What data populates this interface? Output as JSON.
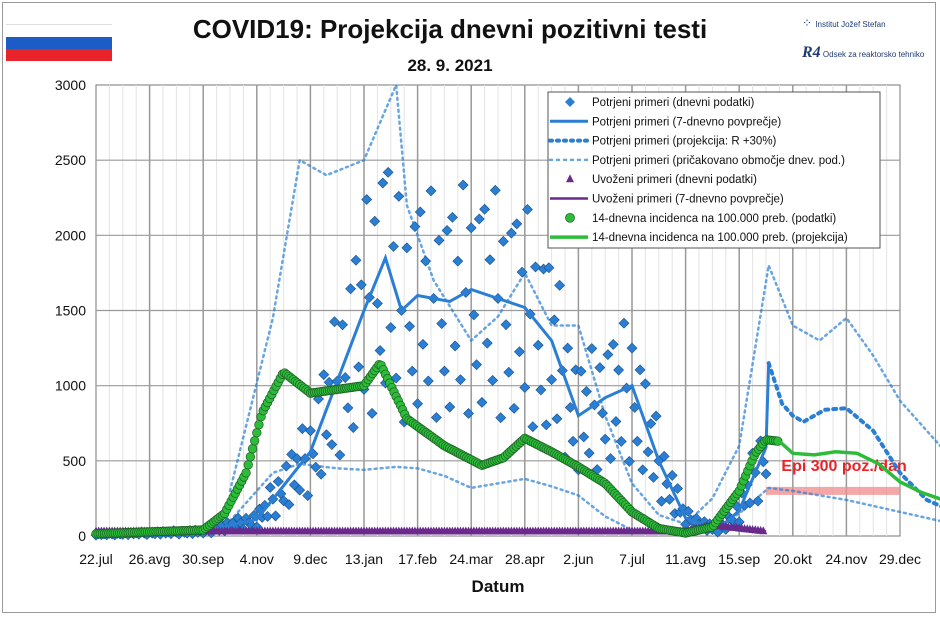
{
  "header": {
    "title": "COVID19: Projekcija dnevni pozitivni testi",
    "date": "28. 9. 2021",
    "logo_ijs": "Institut Jožef Stefan",
    "logo_r4": "R4",
    "logo_r4_text": "Odsek za reaktorsko tehniko"
  },
  "colors": {
    "flag_white": "#ffffff",
    "flag_blue": "#1c5cc7",
    "flag_red": "#e8232a",
    "confirmed": "#2a7fd4",
    "imported": "#6a2a8c",
    "incidence": "#2dbb3a",
    "epi": "#f08a8a"
  },
  "chart_data": {
    "type": "line",
    "xlabel": "Datum",
    "ylabel": "",
    "ylim": [
      0,
      3000
    ],
    "yticks": [
      "0",
      "500",
      "1000",
      "1500",
      "2000",
      "2500",
      "3000"
    ],
    "xticks": [
      "22.jul",
      "26.avg",
      "30.sep",
      "4.nov",
      "9.dec",
      "13.jan",
      "17.feb",
      "24.mar",
      "28.apr",
      "2.jun",
      "7.jul",
      "11.avg",
      "15.sep",
      "20.okt",
      "24.nov",
      "29.dec"
    ],
    "annotation": "Epi 300 poz./dan",
    "epi_threshold": 300,
    "legend_position": "top-right",
    "legend": [
      "Potrjeni primeri (dnevni podatki)",
      "Potrjeni primeri (7-dnevno povprečje)",
      "Potrjeni primeri (projekcija: R +30%)",
      "Potrjeni primeri (pričakovano območje dnev. pod.)",
      "Uvoženi primeri (dnevni podatki)",
      "Uvoženi primeri (7-dnevno povprečje)",
      "14-dnevna incidenca na 100.000 preb. (podatki)",
      "14-dnevna incidenca na 100.000 preb. (projekcija)"
    ],
    "series": [
      {
        "name": "Potrjeni primeri (7-dnevno povprečje)",
        "x": [
          0,
          2,
          3,
          4,
          5,
          5.4,
          5.7,
          6,
          6.6,
          7,
          8,
          8.5,
          9,
          9.5,
          10,
          10.5,
          11,
          11.6,
          12,
          12.5,
          12.55
        ],
        "values": [
          10,
          30,
          110,
          560,
          1500,
          1850,
          1500,
          1600,
          1560,
          1640,
          1520,
          1300,
          800,
          920,
          1000,
          500,
          120,
          40,
          170,
          590,
          1150
        ]
      },
      {
        "name": "Potrjeni primeri (projekcija: R +30%)",
        "x": [
          12.55,
          12.8,
          13,
          13.2,
          13.6,
          14,
          14.5,
          15,
          15.5,
          16
        ],
        "values": [
          1150,
          880,
          800,
          760,
          840,
          850,
          700,
          420,
          240,
          160
        ]
      },
      {
        "name": "Potrjeni primeri (pričakovano območje dnev. pod.) upper",
        "x": [
          2.5,
          3.3,
          3.8,
          4.3,
          5,
          5.6,
          5.8,
          6.3,
          7,
          7.5,
          8,
          8.5,
          9,
          9.5,
          10,
          10.5,
          11,
          11.5,
          12,
          12.55,
          13,
          13.5,
          14,
          14.5,
          15,
          16
        ],
        "values": [
          300,
          1450,
          2500,
          2400,
          2500,
          3000,
          2200,
          1700,
          1300,
          1460,
          1750,
          1400,
          1400,
          800,
          350,
          140,
          80,
          250,
          600,
          1800,
          1400,
          1300,
          1450,
          1200,
          900,
          500
        ]
      },
      {
        "name": "Potrjeni primeri (pričakovano območje dnev. pod.) lower",
        "x": [
          2.5,
          3.3,
          3.8,
          4.5,
          5,
          5.6,
          6,
          6.5,
          7,
          7.5,
          8,
          8.5,
          9,
          9.5,
          10,
          10.5,
          11,
          11.5,
          12,
          12.55,
          13,
          14,
          15,
          16
        ],
        "values": [
          100,
          420,
          480,
          450,
          440,
          460,
          450,
          400,
          320,
          350,
          380,
          330,
          270,
          130,
          40,
          20,
          10,
          40,
          150,
          320,
          300,
          240,
          160,
          80
        ]
      },
      {
        "name": "Uvoženi primeri (7-dnevno povprečje)",
        "x": [
          0,
          11,
          11.5,
          12,
          12.5
        ],
        "values": [
          30,
          30,
          70,
          50,
          30
        ]
      },
      {
        "name": "14-dnevna incidenca na 100.000 preb. (podatki)",
        "x": [
          0,
          2,
          2.4,
          2.8,
          3.1,
          3.5,
          4,
          4.6,
          5,
          5.3,
          5.8,
          6.5,
          7.2,
          7.6,
          8,
          8.5,
          9,
          9.5,
          10,
          10.5,
          11,
          11.5,
          12,
          12.3,
          12.5,
          12.75
        ],
        "values": [
          15,
          40,
          150,
          420,
          820,
          1090,
          950,
          980,
          1000,
          1150,
          780,
          600,
          470,
          520,
          650,
          560,
          460,
          350,
          160,
          50,
          20,
          60,
          300,
          550,
          640,
          630
        ]
      },
      {
        "name": "14-dnevna incidenca na 100.000 preb. (projekcija)",
        "x": [
          12.75,
          13,
          13.4,
          13.8,
          14.2,
          14.6,
          15,
          15.4,
          15.8,
          16
        ],
        "values": [
          630,
          550,
          540,
          560,
          550,
          480,
          360,
          290,
          240,
          180
        ]
      }
    ]
  }
}
